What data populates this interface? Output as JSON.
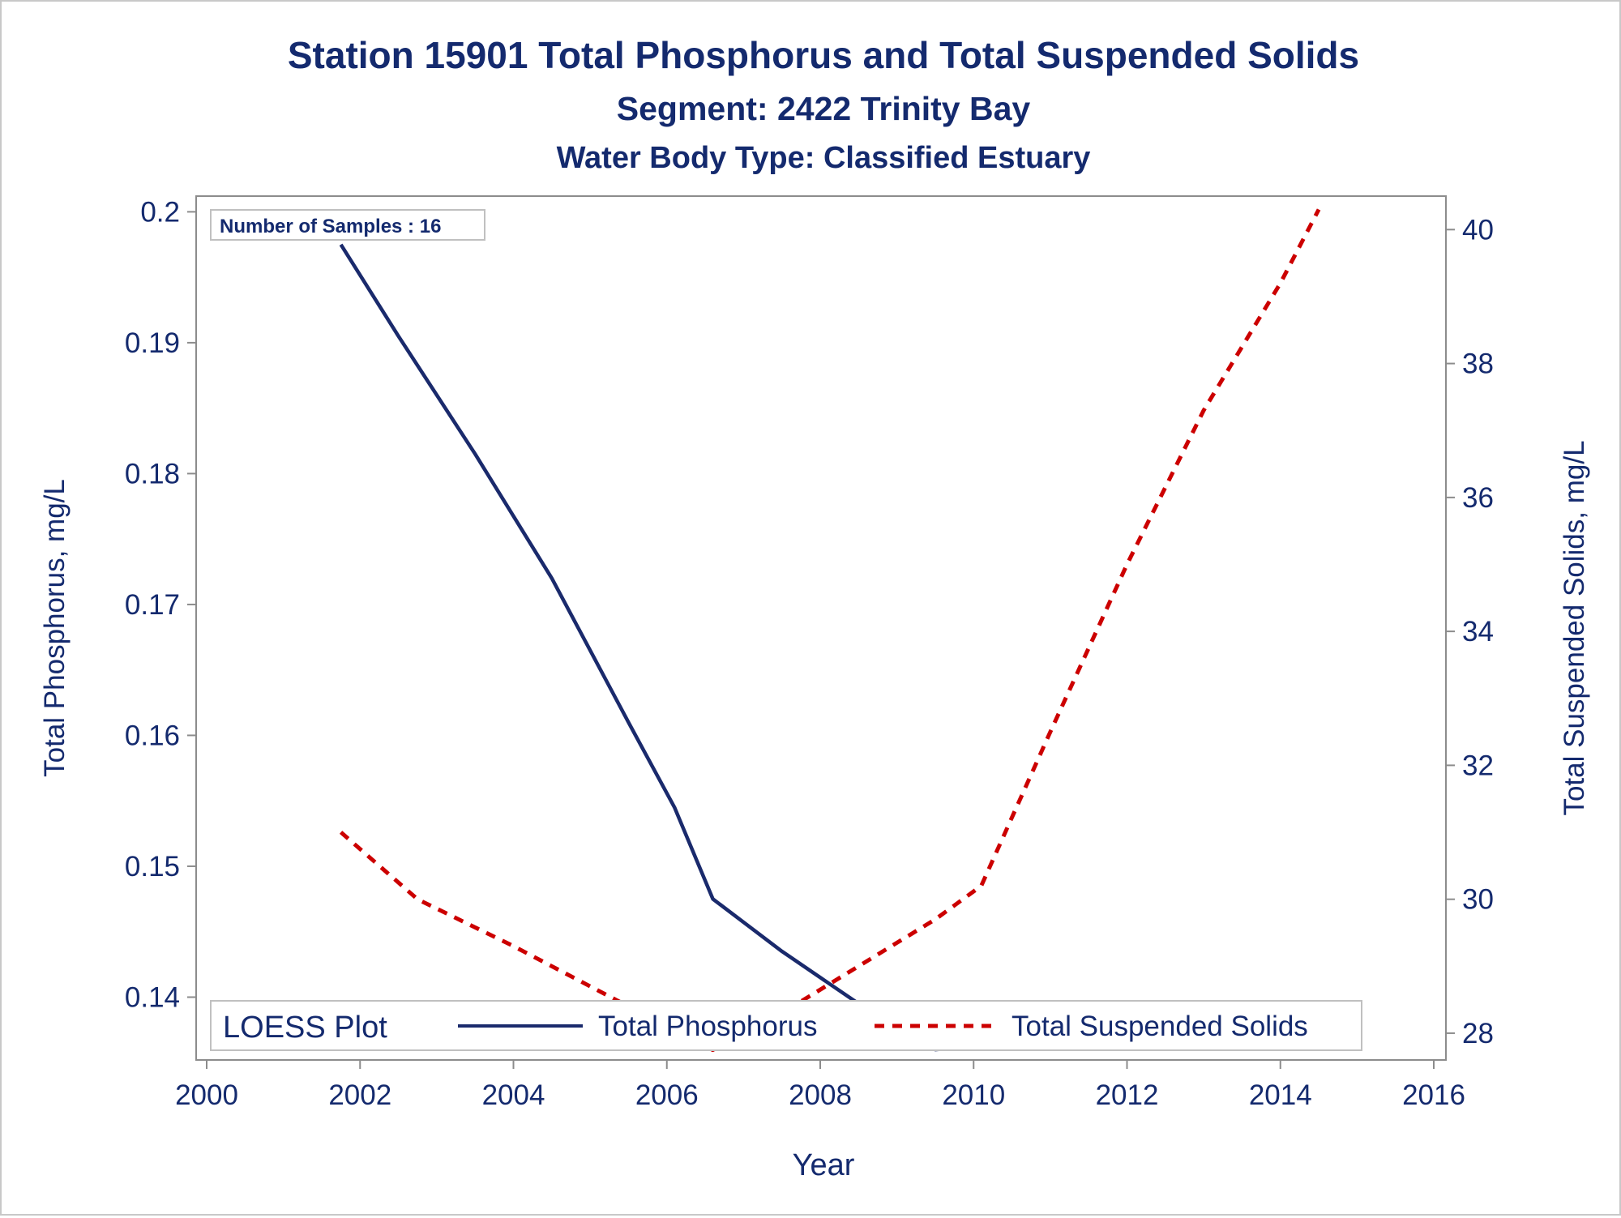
{
  "chart_data": {
    "type": "line",
    "title": "Station 15901  Total Phosphorus and Total Suspended Solids",
    "subtitle": "Segment: 2422  Trinity Bay",
    "subtitle2": "Water Body Type: Classified Estuary",
    "xlabel": "Year",
    "ylabel_left": "Total Phosphorus, mg/L",
    "ylabel_right": "Total Suspended Solids, mg/L",
    "xlim": [
      2000,
      2016
    ],
    "ylim_left": [
      0.1352,
      0.2012
    ],
    "ylim_right": [
      27.6,
      40.5
    ],
    "x_ticks": [
      2000,
      2002,
      2004,
      2006,
      2008,
      2010,
      2012,
      2014,
      2016
    ],
    "y_ticks_left": [
      0.14,
      0.15,
      0.16,
      0.17,
      0.18,
      0.19,
      0.2
    ],
    "y_ticks_left_labels": [
      "0.14",
      "0.15",
      "0.16",
      "0.17",
      "0.18",
      "0.19",
      "0.2"
    ],
    "y_ticks_right": [
      28,
      30,
      32,
      34,
      36,
      38,
      40
    ],
    "annotation": "Number of Samples : 16",
    "legend": {
      "title": "LOESS Plot",
      "position": "bottom-inside",
      "entries": [
        "Total Phosphorus",
        "Total Suspended Solids"
      ]
    },
    "grid": false,
    "series": [
      {
        "name": "Total Phosphorus",
        "axis": "left",
        "color": "#1a2a6c",
        "style": "solid",
        "x": [
          2001.75,
          2002.5,
          2003.5,
          2004.5,
          2005.5,
          2006.1,
          2006.6,
          2007.5,
          2008.5,
          2009.5,
          2010.1,
          2010.5,
          2011.5,
          2012.5,
          2013.5,
          2014.5
        ],
        "y": [
          0.1975,
          0.1905,
          0.1815,
          0.172,
          0.161,
          0.1545,
          0.1475,
          0.1435,
          0.1395,
          0.136,
          0.1363,
          0.1363,
          0.1369,
          0.1375,
          0.1381,
          0.1387
        ]
      },
      {
        "name": "Total Suspended Solids",
        "axis": "right",
        "color": "#cc0000",
        "style": "dashed",
        "x": [
          2001.75,
          2002.75,
          2004.0,
          2005.5,
          2006.6,
          2007.5,
          2008.5,
          2009.5,
          2010.1,
          2011.0,
          2012.0,
          2013.0,
          2014.0,
          2014.5
        ],
        "y": [
          31.0,
          30.0,
          29.3,
          28.4,
          27.75,
          28.3,
          29.0,
          29.7,
          30.2,
          32.5,
          35.0,
          37.3,
          39.2,
          40.3
        ]
      }
    ]
  }
}
